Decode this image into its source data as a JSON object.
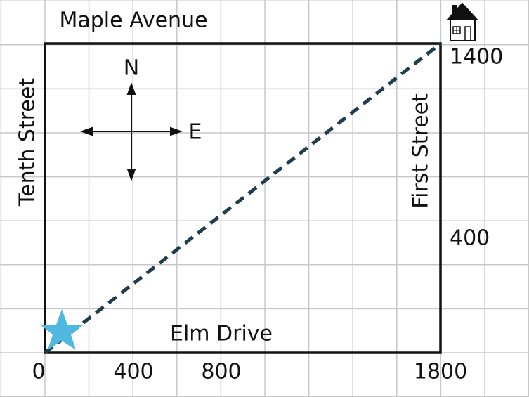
{
  "streets": {
    "north": "Maple Avenue",
    "west": "Tenth Street",
    "east": "First Street",
    "south": "Elm Drive"
  },
  "compass": {
    "north": "N",
    "east": "E"
  },
  "x_labels": [
    "0",
    "400",
    "800",
    "1800"
  ],
  "y_labels": [
    "1400",
    "400"
  ]
}
